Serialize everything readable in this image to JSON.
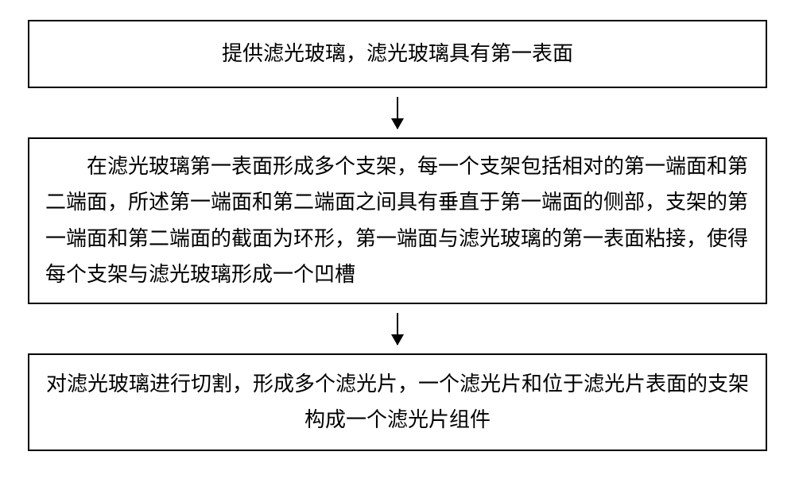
{
  "flowchart": {
    "type": "flowchart",
    "background_color": "#ffffff",
    "border_color": "#000000",
    "border_width": 2,
    "font_family": "KaiTi",
    "font_size_pt": 20,
    "text_color": "#000000",
    "arrow_color": "#000000",
    "boxes": [
      {
        "id": "step1",
        "text": "提供滤光玻璃，滤光玻璃具有第一表面",
        "align": "center"
      },
      {
        "id": "step2",
        "text": "在滤光玻璃第一表面形成多个支架，每一个支架包括相对的第一端面和第二端面，所述第一端面和第二端面之间具有垂直于第一端面的侧部，支架的第一端面和第二端面的截面为环形，第一端面与滤光玻璃的第一表面粘接，使得每个支架与滤光玻璃形成一个凹槽",
        "align": "left-indent"
      },
      {
        "id": "step3",
        "text": "对滤光玻璃进行切割，形成多个滤光片，一个滤光片和位于滤光片表面的支架构成一个滤光片组件",
        "align": "center"
      }
    ],
    "edges": [
      {
        "from": "step1",
        "to": "step2"
      },
      {
        "from": "step2",
        "to": "step3"
      }
    ]
  }
}
